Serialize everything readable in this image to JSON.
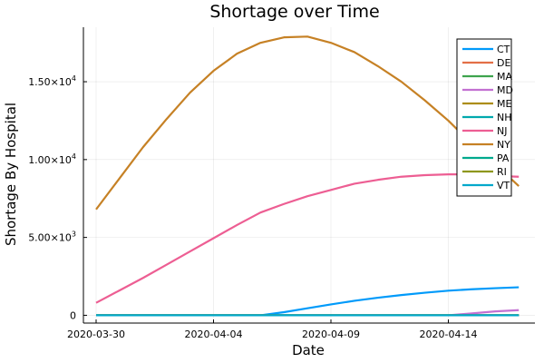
{
  "chart_data": {
    "type": "line",
    "title": "Shortage over Time",
    "xlabel": "Date",
    "ylabel": "Shortage By Hospital",
    "x": [
      "2020-03-30",
      "2020-03-31",
      "2020-04-01",
      "2020-04-02",
      "2020-04-03",
      "2020-04-04",
      "2020-04-05",
      "2020-04-06",
      "2020-04-07",
      "2020-04-08",
      "2020-04-09",
      "2020-04-10",
      "2020-04-11",
      "2020-04-12",
      "2020-04-13",
      "2020-04-14",
      "2020-04-15",
      "2020-04-16",
      "2020-04-17"
    ],
    "x_ticks": [
      "2020-03-30",
      "2020-04-04",
      "2020-04-09",
      "2020-04-14"
    ],
    "y_ticks": [
      {
        "value": 0,
        "mantissa": "0",
        "exp": ""
      },
      {
        "value": 5000,
        "mantissa": "5.00×10",
        "exp": "3"
      },
      {
        "value": 10000,
        "mantissa": "1.00×10",
        "exp": "4"
      },
      {
        "value": 15000,
        "mantissa": "1.50×10",
        "exp": "4"
      }
    ],
    "ylim": [
      -500,
      18500
    ],
    "grid": true,
    "legend_position": "top-right",
    "series": [
      {
        "name": "CT",
        "color": "#009AFA",
        "values": [
          0,
          0,
          0,
          0,
          0,
          0,
          0,
          0,
          200,
          450,
          700,
          930,
          1130,
          1300,
          1450,
          1580,
          1670,
          1740,
          1800
        ]
      },
      {
        "name": "DE",
        "color": "#E36F47",
        "values": [
          0,
          0,
          0,
          0,
          0,
          0,
          0,
          0,
          0,
          0,
          0,
          0,
          0,
          0,
          0,
          0,
          0,
          0,
          0
        ]
      },
      {
        "name": "MA",
        "color": "#3EA44E",
        "values": [
          0,
          0,
          0,
          0,
          0,
          0,
          0,
          0,
          0,
          0,
          0,
          0,
          0,
          0,
          0,
          0,
          0,
          0,
          0
        ]
      },
      {
        "name": "MD",
        "color": "#C371D2",
        "values": [
          0,
          0,
          0,
          0,
          0,
          0,
          0,
          0,
          0,
          0,
          0,
          0,
          0,
          0,
          0,
          0,
          120,
          250,
          330
        ]
      },
      {
        "name": "ME",
        "color": "#AC8D18",
        "values": [
          0,
          0,
          0,
          0,
          0,
          0,
          0,
          0,
          0,
          0,
          0,
          0,
          0,
          0,
          0,
          0,
          0,
          0,
          0
        ]
      },
      {
        "name": "NH",
        "color": "#00A9AD",
        "values": [
          0,
          0,
          0,
          0,
          0,
          0,
          0,
          0,
          0,
          0,
          0,
          0,
          0,
          0,
          0,
          0,
          0,
          0,
          0
        ]
      },
      {
        "name": "NJ",
        "color": "#ED5E93",
        "values": [
          800,
          1600,
          2400,
          3250,
          4100,
          4950,
          5800,
          6600,
          7150,
          7650,
          8050,
          8450,
          8700,
          8900,
          9000,
          9050,
          9050,
          8950,
          8900
        ]
      },
      {
        "name": "NY",
        "color": "#C68125",
        "values": [
          6800,
          8800,
          10800,
          12600,
          14300,
          15700,
          16800,
          17500,
          17850,
          17900,
          17500,
          16900,
          16000,
          15000,
          13800,
          12500,
          11000,
          9700,
          8300
        ]
      },
      {
        "name": "PA",
        "color": "#00A98D",
        "values": [
          0,
          0,
          0,
          0,
          0,
          0,
          0,
          0,
          0,
          0,
          0,
          0,
          0,
          0,
          0,
          0,
          0,
          0,
          0
        ]
      },
      {
        "name": "RI",
        "color": "#8E971D",
        "values": [
          0,
          0,
          0,
          0,
          0,
          0,
          0,
          0,
          0,
          0,
          0,
          0,
          0,
          0,
          0,
          0,
          0,
          0,
          0
        ]
      },
      {
        "name": "VT",
        "color": "#00A8CB",
        "values": [
          0,
          0,
          0,
          0,
          0,
          0,
          0,
          0,
          0,
          0,
          0,
          0,
          0,
          0,
          0,
          0,
          0,
          0,
          0
        ]
      }
    ]
  }
}
